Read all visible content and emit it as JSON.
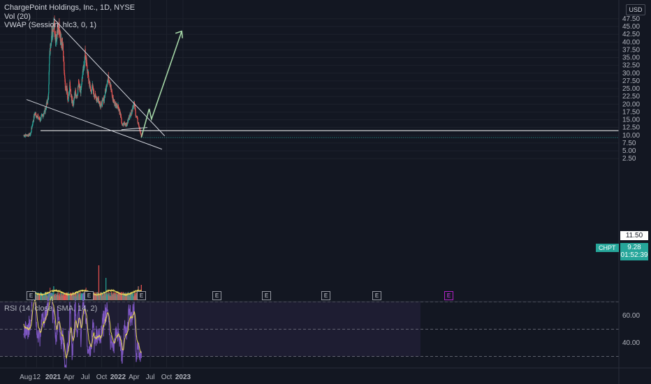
{
  "header": {
    "title": "ChargePoint Holdings, Inc., 1D, NYSE",
    "indicator_vol": "Vol (20)",
    "indicator_vwap": "VWAP (Session, hlc3, 0, 1)"
  },
  "currency_badge": "USD",
  "symbol_badge": "CHPT",
  "price_tag": {
    "price": "9.28",
    "countdown": "01:52:39"
  },
  "level_tag": "11.50",
  "rsi_legend": "RSI (14, close, SMA, 14, 2)",
  "earnings_marker_label": "E",
  "colors": {
    "background": "#131722",
    "up": "#26a69a",
    "down": "#ef5350",
    "projection": "#a5d6a7",
    "trendline": "#d1d4dc",
    "vol_ma": "#e5d35a",
    "rsi": "#7e57c2",
    "rsi_ma": "#e5d35a"
  },
  "chart_data": [
    {
      "type": "candlestick",
      "title": "ChargePoint Holdings, Inc., 1D, NYSE",
      "price_axis": {
        "ticks": [
          "47.50",
          "45.00",
          "42.50",
          "40.00",
          "37.50",
          "35.00",
          "32.50",
          "30.00",
          "27.50",
          "25.00",
          "22.50",
          "20.00",
          "17.50",
          "15.00",
          "12.50",
          "10.00",
          "7.50",
          "5.00",
          "2.50"
        ],
        "range": [
          0,
          48
        ],
        "scale": "linear"
      },
      "time_axis": {
        "ticks": [
          "Aug",
          "12",
          "2021",
          "Apr",
          "Jul",
          "Oct",
          "2022",
          "Apr",
          "Jul",
          "Oct",
          "2023"
        ]
      },
      "close_series": [
        [
          "2020-07-20",
          9.9
        ],
        [
          "2020-08-01",
          10.0
        ],
        [
          "2020-08-15",
          10.1
        ],
        [
          "2020-08-27",
          10.2
        ],
        [
          "2020-09-05",
          13.0
        ],
        [
          "2020-09-20",
          17.0
        ],
        [
          "2020-10-05",
          16.0
        ],
        [
          "2020-10-20",
          15.0
        ],
        [
          "2020-11-05",
          16.5
        ],
        [
          "2020-11-20",
          18.5
        ],
        [
          "2020-12-05",
          22.0
        ],
        [
          "2020-12-12",
          35.0
        ],
        [
          "2020-12-20",
          41.0
        ],
        [
          "2020-12-31",
          44.0
        ],
        [
          "2021-01-05",
          47.5
        ],
        [
          "2021-01-15",
          41.0
        ],
        [
          "2021-01-25",
          43.0
        ],
        [
          "2021-02-05",
          45.0
        ],
        [
          "2021-02-15",
          40.0
        ],
        [
          "2021-02-25",
          38.0
        ],
        [
          "2021-03-05",
          30.0
        ],
        [
          "2021-03-12",
          24.0
        ],
        [
          "2021-03-20",
          25.0
        ],
        [
          "2021-03-25",
          20.5
        ],
        [
          "2021-04-05",
          26.0
        ],
        [
          "2021-04-15",
          22.0
        ],
        [
          "2021-04-25",
          20.0
        ],
        [
          "2021-05-05",
          24.0
        ],
        [
          "2021-05-15",
          22.5
        ],
        [
          "2021-05-25",
          27.0
        ],
        [
          "2021-06-05",
          24.5
        ],
        [
          "2021-06-15",
          29.0
        ],
        [
          "2021-06-25",
          33.0
        ],
        [
          "2021-07-01",
          36.5
        ],
        [
          "2021-07-10",
          32.0
        ],
        [
          "2021-07-20",
          28.0
        ],
        [
          "2021-08-01",
          24.0
        ],
        [
          "2021-08-10",
          25.5
        ],
        [
          "2021-08-20",
          23.0
        ],
        [
          "2021-09-01",
          22.0
        ],
        [
          "2021-09-15",
          21.5
        ],
        [
          "2021-09-25",
          19.5
        ],
        [
          "2021-10-05",
          20.5
        ],
        [
          "2021-10-15",
          22.0
        ],
        [
          "2021-10-25",
          25.0
        ],
        [
          "2021-11-01",
          27.5
        ],
        [
          "2021-11-10",
          28.5
        ],
        [
          "2021-11-20",
          26.0
        ],
        [
          "2021-12-01",
          22.0
        ],
        [
          "2021-12-15",
          20.0
        ],
        [
          "2022-01-01",
          19.5
        ],
        [
          "2022-01-15",
          16.5
        ],
        [
          "2022-01-25",
          13.0
        ],
        [
          "2022-02-05",
          14.0
        ],
        [
          "2022-02-20",
          13.5
        ],
        [
          "2022-03-05",
          16.0
        ],
        [
          "2022-03-15",
          17.0
        ],
        [
          "2022-03-25",
          19.0
        ],
        [
          "2022-04-01",
          20.5
        ],
        [
          "2022-04-10",
          17.0
        ],
        [
          "2022-04-20",
          15.0
        ],
        [
          "2022-04-28",
          13.0
        ],
        [
          "2022-05-05",
          11.5
        ],
        [
          "2022-05-12",
          9.28
        ]
      ],
      "annotations": {
        "horizontal_level": 11.5,
        "upper_trendline": [
          [
            "2021-01-05",
            47.5
          ],
          [
            "2022-09-20",
            9.8
          ]
        ],
        "lower_trendline": [
          [
            "2020-08-05",
            21.5
          ],
          [
            "2022-09-05",
            5.5
          ]
        ],
        "minor_line": [
          [
            "2022-01-20",
            11.8
          ],
          [
            "2022-06-15",
            12.5
          ]
        ],
        "projection_path": [
          [
            "2022-05-12",
            9.28
          ],
          [
            "2022-06-25",
            18.5
          ],
          [
            "2022-07-08",
            15.2
          ],
          [
            "2022-12-25",
            43.5
          ]
        ]
      }
    },
    {
      "type": "bar",
      "title": "Vol (20)",
      "spikes": [
        [
          "2020-09-20",
          0.6
        ],
        [
          "2020-12-15",
          0.9
        ],
        [
          "2021-01-05",
          1.0
        ],
        [
          "2021-07-05",
          0.9
        ],
        [
          "2021-09-15",
          2.5
        ],
        [
          "2021-10-25",
          1.6
        ],
        [
          "2022-04-25",
          1.0
        ],
        [
          "2022-05-12",
          1.1
        ]
      ]
    },
    {
      "type": "line",
      "title": "RSI (14, close, SMA, 14, 2)",
      "axis_ticks": [
        "60.00",
        "40.00"
      ],
      "ylim": [
        20,
        80
      ],
      "bands": [
        70,
        30
      ]
    }
  ]
}
